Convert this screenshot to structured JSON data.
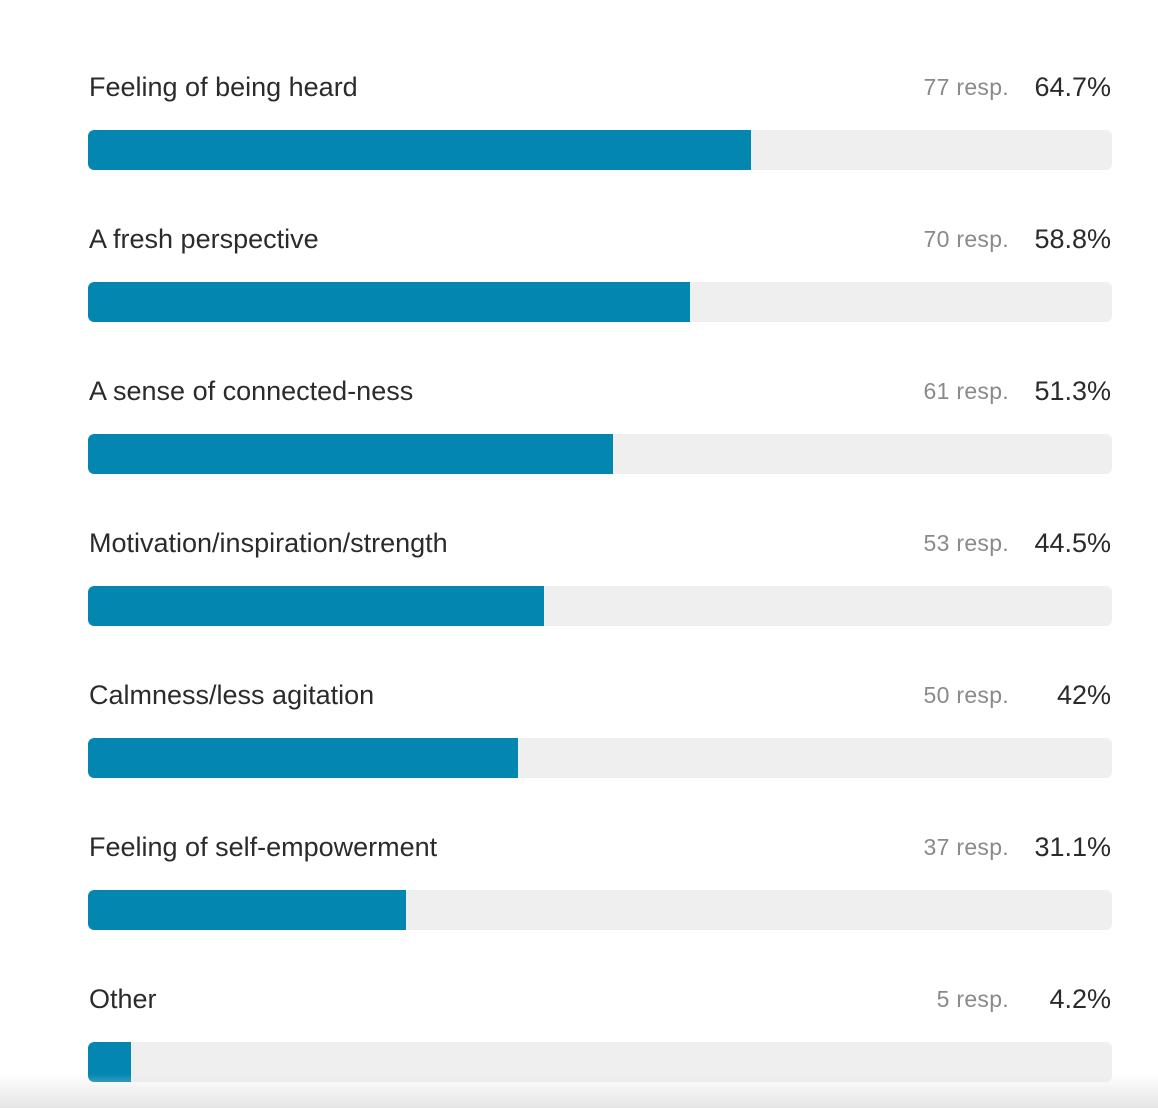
{
  "colors": {
    "bar_fill": "#0387b0",
    "bar_track": "#efefef",
    "label_text": "#2b2b2b",
    "resp_text": "#8a8a8a"
  },
  "chart_data": {
    "type": "bar",
    "orientation": "horizontal",
    "categories": [
      "Feeling of being heard",
      "A fresh perspective",
      "A sense of connected-ness",
      "Motivation/inspiration/strength",
      "Calmness/less agitation",
      "Feeling of self-empowerment",
      "Other"
    ],
    "responses": [
      77,
      70,
      61,
      53,
      50,
      37,
      5
    ],
    "response_labels": [
      "77 resp.",
      "70 resp.",
      "61 resp.",
      "53 resp.",
      "50 resp.",
      "37 resp.",
      "5 resp."
    ],
    "values": [
      64.7,
      58.8,
      51.3,
      44.5,
      42,
      31.1,
      4.2
    ],
    "value_labels": [
      "64.7%",
      "58.8%",
      "51.3%",
      "44.5%",
      "42%",
      "31.1%",
      "4.2%"
    ],
    "xlim": [
      0,
      100
    ],
    "title": "",
    "xlabel": "",
    "ylabel": "",
    "grid": false,
    "legend": "none"
  }
}
